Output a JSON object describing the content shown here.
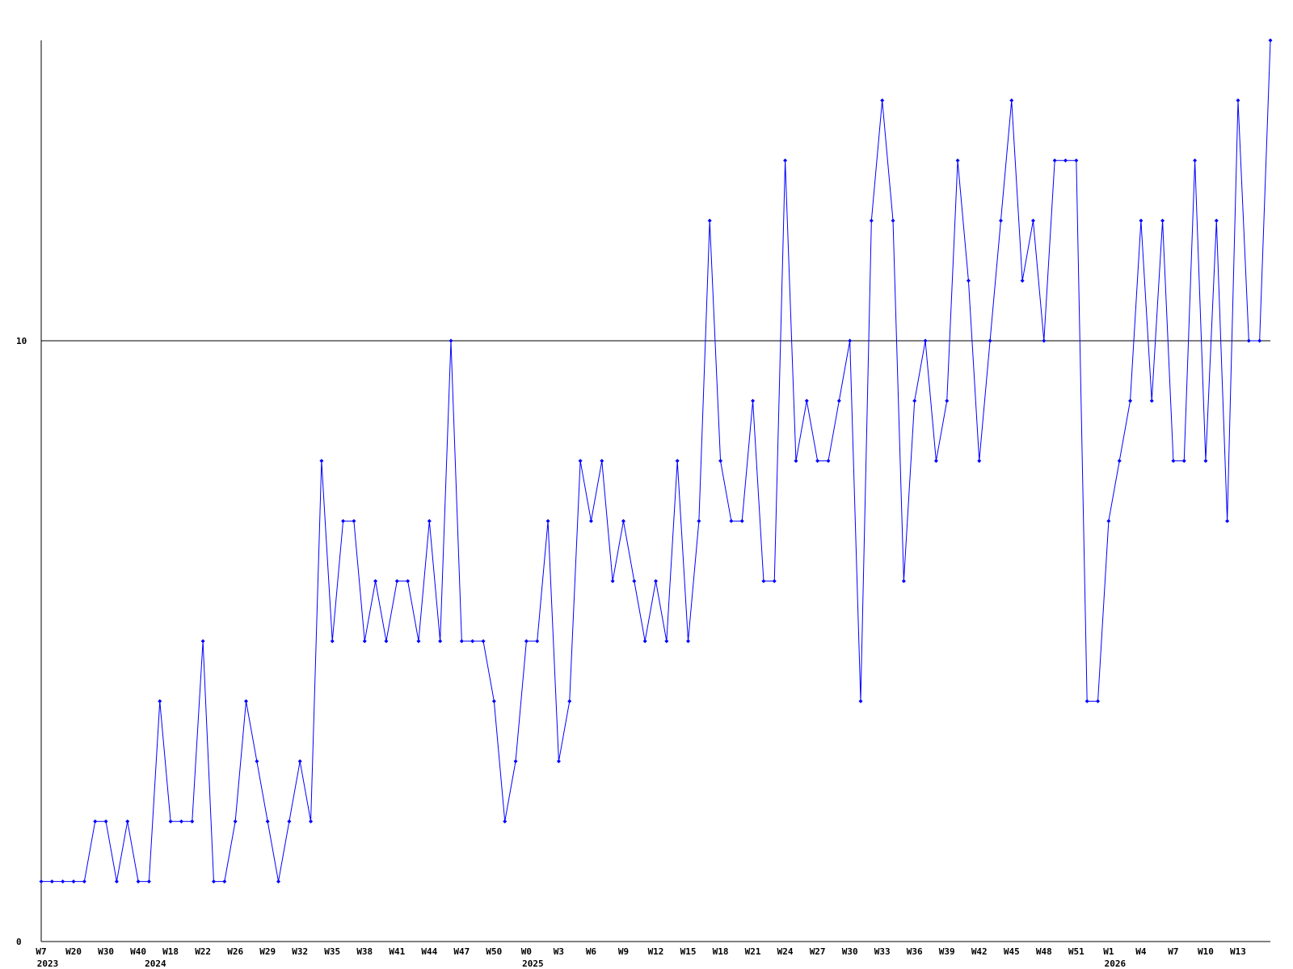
{
  "chart_data": {
    "type": "line",
    "categories": [
      "W7",
      null,
      null,
      "W20",
      null,
      null,
      "W30",
      null,
      null,
      "W40",
      null,
      null,
      "W18",
      null,
      null,
      "W22",
      null,
      null,
      "W26",
      null,
      null,
      "W29",
      null,
      null,
      "W32",
      null,
      null,
      "W35",
      null,
      null,
      "W38",
      null,
      null,
      "W41",
      null,
      null,
      "W44",
      null,
      null,
      "W47",
      null,
      null,
      "W50",
      null,
      null,
      "W0",
      null,
      null,
      "W3",
      null,
      null,
      "W6",
      null,
      null,
      "W9",
      null,
      null,
      "W12",
      null,
      null,
      "W15",
      null,
      null,
      "W18",
      null,
      null,
      "W21",
      null,
      null,
      "W24",
      null,
      null,
      "W27",
      null,
      null,
      "W30",
      null,
      null,
      "W33",
      null,
      null,
      "W36",
      null,
      null,
      "W39",
      null,
      null,
      "W42",
      null,
      null,
      "W45",
      null,
      null,
      "W48",
      null,
      null,
      "W51",
      null,
      null,
      "W1",
      null,
      null,
      "W4",
      null,
      null,
      "W7",
      null,
      null,
      "W10",
      null,
      null,
      "W13",
      null,
      null,
      null
    ],
    "category_years": [
      "2023",
      null,
      null,
      null,
      null,
      null,
      null,
      null,
      null,
      null,
      "2024",
      null,
      null,
      null,
      null,
      null,
      null,
      null,
      null,
      null,
      null,
      null,
      null,
      null,
      null,
      null,
      null,
      null,
      null,
      null,
      null,
      null,
      null,
      null,
      null,
      null,
      null,
      null,
      null,
      null,
      null,
      null,
      null,
      null,
      null,
      "2025",
      null,
      null,
      null,
      null,
      null,
      null,
      null,
      null,
      null,
      null,
      null,
      null,
      null,
      null,
      null,
      null,
      null,
      null,
      null,
      null,
      null,
      null,
      null,
      null,
      null,
      null,
      null,
      null,
      null,
      null,
      null,
      null,
      null,
      null,
      null,
      null,
      null,
      null,
      null,
      null,
      null,
      null,
      null,
      null,
      null,
      null,
      null,
      null,
      null,
      null,
      null,
      null,
      null,
      "2026",
      null,
      null,
      null,
      null,
      null,
      null,
      null,
      null,
      null,
      null,
      null,
      null,
      null,
      null,
      null
    ],
    "series": [
      {
        "color": "#0000ff",
        "values": [
          1,
          1,
          1,
          1,
          1,
          2,
          2,
          1,
          2,
          1,
          1,
          4,
          2,
          2,
          2,
          5,
          1,
          1,
          2,
          4,
          3,
          2,
          1,
          2,
          3,
          2,
          8,
          5,
          7,
          7,
          5,
          6,
          5,
          6,
          6,
          5,
          7,
          5,
          10,
          5,
          5,
          5,
          4,
          2,
          3,
          5,
          5,
          7,
          3,
          4,
          8,
          7,
          8,
          6,
          7,
          6,
          5,
          6,
          5,
          8,
          5,
          7,
          12,
          8,
          7,
          7,
          9,
          6,
          6,
          13,
          8,
          9,
          8,
          8,
          9,
          10,
          4,
          12,
          14,
          12,
          6,
          9,
          10,
          8,
          9,
          13,
          11,
          8,
          10,
          12,
          14,
          11,
          12,
          10,
          13,
          13,
          13,
          4,
          4,
          7,
          8,
          9,
          12,
          9,
          12,
          8,
          8,
          13,
          8,
          12,
          7,
          14,
          10,
          10,
          15
        ]
      }
    ],
    "ylim": [
      0,
      15
    ],
    "yticks": [
      0,
      10
    ],
    "grid": true
  }
}
